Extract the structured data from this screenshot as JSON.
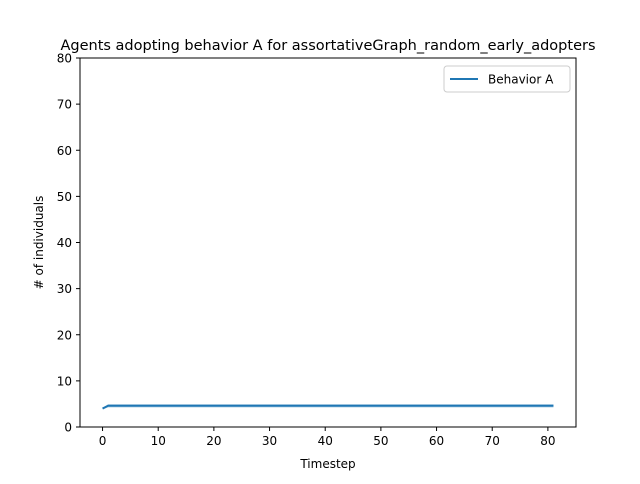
{
  "chart_data": {
    "type": "line",
    "title": "Agents adopting behavior A for assortativeGraph_random_early_adopters",
    "xlabel": "Timestep",
    "ylabel": "# of individuals",
    "xlim": [
      -4.05,
      85.05
    ],
    "ylim": [
      0,
      80
    ],
    "xticks": [
      0,
      10,
      20,
      30,
      40,
      50,
      60,
      70,
      80
    ],
    "yticks": [
      0,
      10,
      20,
      30,
      40,
      50,
      60,
      70,
      80
    ],
    "grid": false,
    "legend_position": "upper right",
    "series": [
      {
        "name": "Behavior A",
        "color": "#1f77b4",
        "x": [
          0,
          1,
          81
        ],
        "y": [
          4.0,
          4.6,
          4.6
        ],
        "band_lower": [
          3.9,
          4.2,
          4.2
        ],
        "band_upper": [
          4.1,
          5.0,
          5.0
        ]
      }
    ]
  }
}
